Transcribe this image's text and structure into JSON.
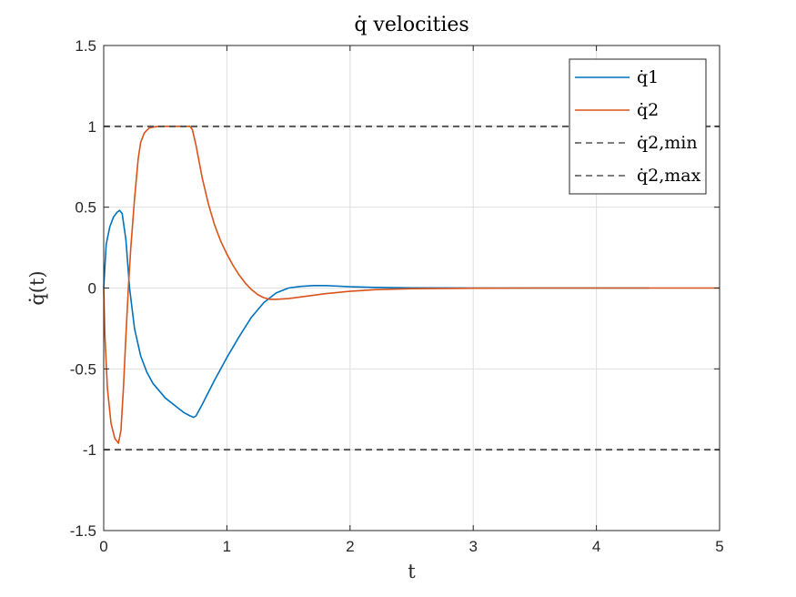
{
  "chart_data": {
    "type": "line",
    "title": "q̇ velocities",
    "xlabel": "t",
    "ylabel": "q̇(t)",
    "xlim": [
      0,
      5
    ],
    "ylim": [
      -1.5,
      1.5
    ],
    "xticks": [
      0,
      1,
      2,
      3,
      4,
      5
    ],
    "xtick_labels": [
      "0",
      "1",
      "2",
      "3",
      "4",
      "5"
    ],
    "yticks": [
      -1.5,
      -1,
      -0.5,
      0,
      0.5,
      1,
      1.5
    ],
    "ytick_labels": [
      "-1.5",
      "-1",
      "-0.5",
      "0",
      "0.5",
      "1",
      "1.5"
    ],
    "grid": true,
    "legend_position": "top-right",
    "series": [
      {
        "name": "q̇1",
        "color": "#0072BD",
        "style": "solid",
        "x": [
          0,
          0.02,
          0.05,
          0.08,
          0.11,
          0.13,
          0.15,
          0.18,
          0.21,
          0.25,
          0.3,
          0.35,
          0.4,
          0.5,
          0.6,
          0.65,
          0.7,
          0.73,
          0.75,
          0.8,
          0.9,
          1.0,
          1.1,
          1.2,
          1.3,
          1.4,
          1.5,
          1.6,
          1.7,
          1.8,
          1.9,
          2.0,
          2.2,
          2.5,
          3.0,
          3.5,
          4.0,
          4.43
        ],
        "y": [
          0,
          0.27,
          0.38,
          0.44,
          0.47,
          0.48,
          0.46,
          0.3,
          0.0,
          -0.25,
          -0.42,
          -0.52,
          -0.59,
          -0.68,
          -0.74,
          -0.77,
          -0.79,
          -0.8,
          -0.79,
          -0.72,
          -0.57,
          -0.43,
          -0.3,
          -0.18,
          -0.09,
          -0.03,
          0.0,
          0.01,
          0.015,
          0.015,
          0.012,
          0.008,
          0.004,
          0.001,
          0.0,
          0.0,
          0.0,
          0.0
        ]
      },
      {
        "name": "q̇2",
        "color": "#D95319",
        "style": "solid",
        "x": [
          0,
          0.01,
          0.03,
          0.06,
          0.09,
          0.12,
          0.14,
          0.16,
          0.18,
          0.2,
          0.22,
          0.25,
          0.28,
          0.3,
          0.33,
          0.37,
          0.4,
          0.45,
          0.5,
          0.55,
          0.6,
          0.65,
          0.7,
          0.72,
          0.75,
          0.8,
          0.85,
          0.9,
          0.95,
          1.0,
          1.05,
          1.1,
          1.15,
          1.2,
          1.25,
          1.3,
          1.35,
          1.4,
          1.5,
          1.6,
          1.8,
          2.0,
          2.2,
          2.5,
          3.0,
          3.5,
          4.0,
          4.5,
          5.0
        ],
        "y": [
          0,
          -0.3,
          -0.62,
          -0.84,
          -0.93,
          -0.96,
          -0.88,
          -0.62,
          -0.3,
          0.0,
          0.25,
          0.55,
          0.8,
          0.9,
          0.96,
          0.99,
          0.995,
          1.0,
          1.0,
          1.0,
          1.0,
          1.0,
          1.0,
          0.98,
          0.88,
          0.68,
          0.52,
          0.39,
          0.29,
          0.21,
          0.14,
          0.08,
          0.03,
          -0.01,
          -0.04,
          -0.06,
          -0.07,
          -0.07,
          -0.065,
          -0.055,
          -0.035,
          -0.02,
          -0.01,
          -0.004,
          -0.001,
          0.0,
          0.0,
          0.0,
          0.0
        ]
      },
      {
        "name": "q̇2,min",
        "color": "#555555",
        "style": "dashed",
        "x": [
          0,
          5
        ],
        "y": [
          -1,
          -1
        ]
      },
      {
        "name": "q̇2,max",
        "color": "#555555",
        "style": "dashed",
        "x": [
          0,
          5
        ],
        "y": [
          1,
          1
        ]
      }
    ]
  }
}
